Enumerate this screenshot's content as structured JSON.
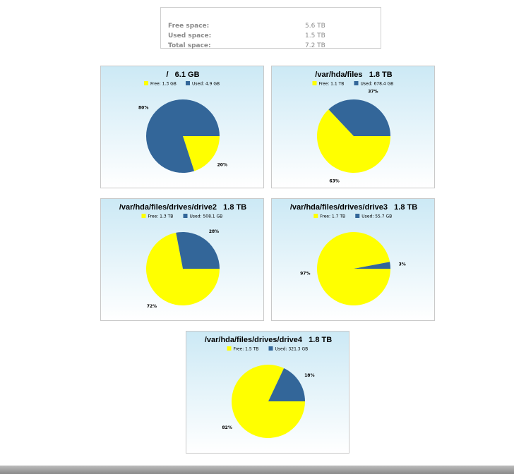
{
  "summary": {
    "free_label": "Free space:",
    "free_value": "5.6 TB",
    "used_label": "Used space:",
    "used_value": "1.5 TB",
    "total_label": "Total space:",
    "total_value": "7.2 TB"
  },
  "colors": {
    "free": "#ffff00",
    "used": "#336699",
    "card_top": "#cce9f5"
  },
  "chart_data": [
    {
      "type": "pie",
      "title": "/   6.1 GB",
      "slices": [
        {
          "name": "Free",
          "legend": "Free: 1.3 GB",
          "value": 20,
          "label": "20%"
        },
        {
          "name": "Used",
          "legend": "Used: 4.9 GB",
          "value": 80,
          "label": "80%"
        }
      ]
    },
    {
      "type": "pie",
      "title": "/var/hda/files   1.8 TB",
      "slices": [
        {
          "name": "Free",
          "legend": "Free: 1.1 TB",
          "value": 63,
          "label": "63%"
        },
        {
          "name": "Used",
          "legend": "Used: 678.4 GB",
          "value": 37,
          "label": "37%"
        }
      ]
    },
    {
      "type": "pie",
      "title": "/var/hda/files/drives/drive2   1.8 TB",
      "slices": [
        {
          "name": "Free",
          "legend": "Free: 1.3 TB",
          "value": 72,
          "label": "72%"
        },
        {
          "name": "Used",
          "legend": "Used: 508.1 GB",
          "value": 28,
          "label": "28%"
        }
      ]
    },
    {
      "type": "pie",
      "title": "/var/hda/files/drives/drive3   1.8 TB",
      "slices": [
        {
          "name": "Free",
          "legend": "Free: 1.7 TB",
          "value": 97,
          "label": "97%"
        },
        {
          "name": "Used",
          "legend": "Used: 55.7 GB",
          "value": 3,
          "label": "3%"
        }
      ]
    },
    {
      "type": "pie",
      "title": "/var/hda/files/drives/drive4   1.8 TB",
      "slices": [
        {
          "name": "Free",
          "legend": "Free: 1.5 TB",
          "value": 82,
          "label": "82%"
        },
        {
          "name": "Used",
          "legend": "Used: 321.3 GB",
          "value": 18,
          "label": "18%"
        }
      ]
    }
  ]
}
